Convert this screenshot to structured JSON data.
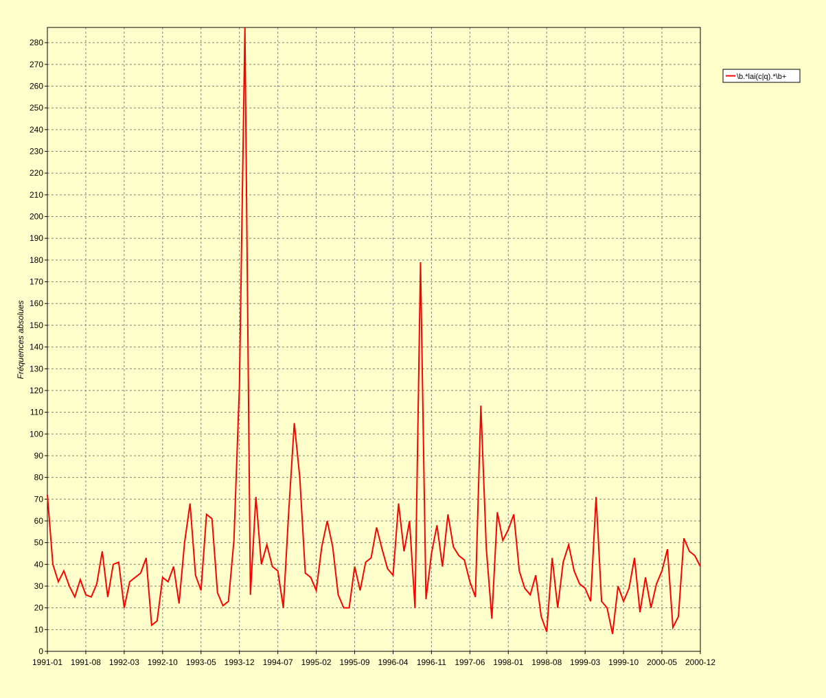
{
  "chart_data": {
    "type": "line",
    "title": "",
    "xlabel": "",
    "ylabel": "Fréquences absolues",
    "ylim": [
      0,
      287
    ],
    "y_ticks": [
      0,
      10,
      20,
      30,
      40,
      50,
      60,
      70,
      80,
      90,
      100,
      110,
      120,
      130,
      140,
      150,
      160,
      170,
      180,
      190,
      200,
      210,
      220,
      230,
      240,
      250,
      260,
      270,
      280
    ],
    "x_ticks": [
      "1991-01",
      "1991-08",
      "1992-03",
      "1992-10",
      "1993-05",
      "1993-12",
      "1994-07",
      "1995-02",
      "1995-09",
      "1996-04",
      "1996-11",
      "1997-06",
      "1998-01",
      "1998-08",
      "1999-03",
      "1999-10",
      "2000-05",
      "2000-12"
    ],
    "grid": true,
    "legend_position": "right",
    "series": [
      {
        "name": "\\b.*lai(c|q).*\\b+",
        "color": "#ff0000",
        "start": "1991-01",
        "values": [
          72,
          40,
          32,
          37,
          30,
          25,
          33,
          26,
          25,
          31,
          46,
          25,
          40,
          41,
          20,
          32,
          34,
          36,
          43,
          12,
          14,
          34,
          32,
          39,
          22,
          50,
          68,
          35,
          28,
          63,
          61,
          27,
          21,
          23,
          51,
          122,
          287,
          26,
          71,
          40,
          49,
          39,
          37,
          20,
          65,
          105,
          80,
          36,
          34,
          28,
          48,
          60,
          48,
          26,
          20,
          20,
          39,
          28,
          41,
          43,
          57,
          47,
          38,
          35,
          68,
          46,
          60,
          20,
          179,
          24,
          45,
          58,
          39,
          63,
          48,
          44,
          42,
          32,
          25,
          113,
          47,
          15,
          64,
          51,
          56,
          63,
          37,
          29,
          26,
          35,
          16,
          9,
          43,
          20,
          41,
          49,
          37,
          31,
          29,
          23,
          71,
          23,
          20,
          8,
          30,
          23,
          29,
          43,
          18,
          34,
          20,
          31,
          37,
          47,
          11,
          16,
          52,
          46,
          44,
          39
        ]
      }
    ]
  }
}
